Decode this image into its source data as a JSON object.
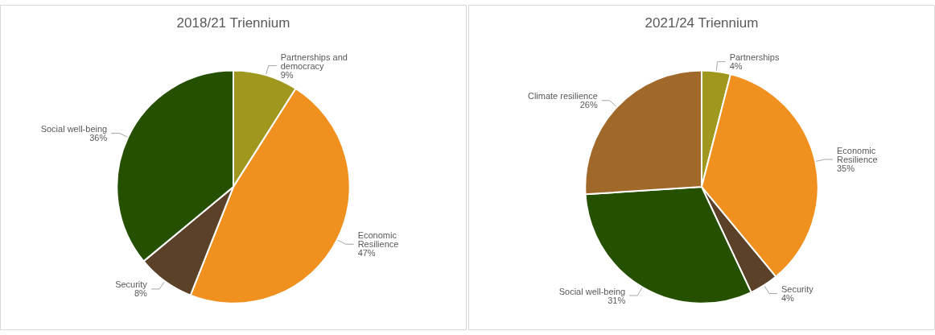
{
  "chart_data": [
    {
      "type": "pie",
      "title": "2018/21 Triennium",
      "categories": [
        "Partnerships and democracy",
        "Economic Resilience",
        "Security",
        "Social well-being"
      ],
      "values": [
        9,
        47,
        8,
        36
      ],
      "value_labels": [
        "9%",
        "47%",
        "8%",
        "36%"
      ],
      "colors": [
        "#a0981e",
        "#f0901e",
        "#5a4128",
        "#245000"
      ],
      "legend": false
    },
    {
      "type": "pie",
      "title": "2021/24 Triennium",
      "categories": [
        "Partnerships",
        "Economic Resilience",
        "Security",
        "Social well-being",
        "Climate resilience"
      ],
      "values": [
        4,
        35,
        4,
        31,
        26
      ],
      "value_labels": [
        "4%",
        "35%",
        "4%",
        "31%",
        "26%"
      ],
      "colors": [
        "#a0981e",
        "#f0901e",
        "#5a4128",
        "#245000",
        "#a0692a"
      ],
      "legend": false
    }
  ]
}
